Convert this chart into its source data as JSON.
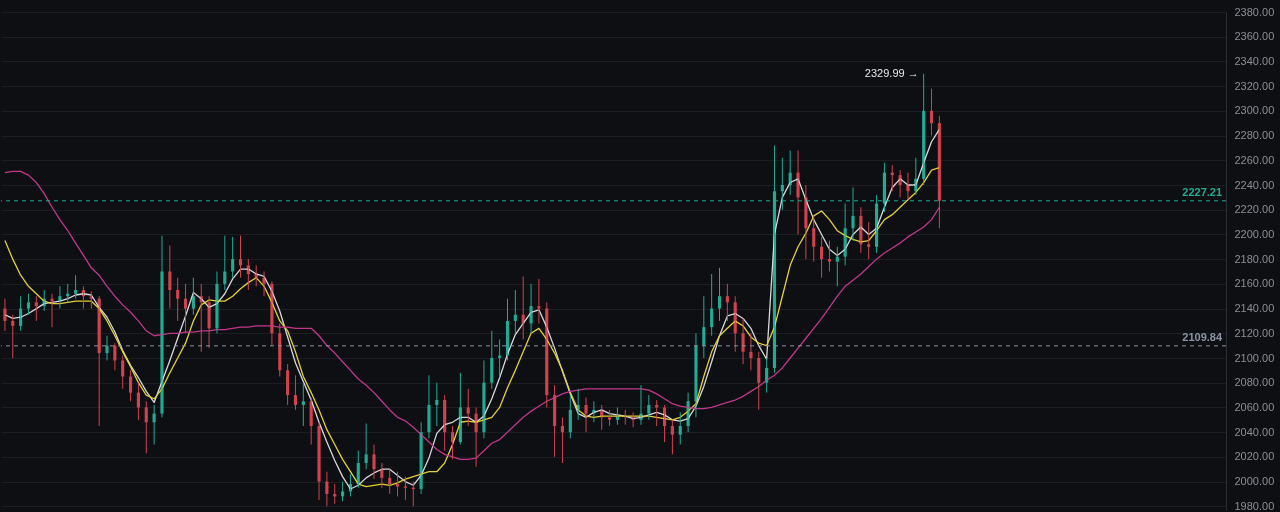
{
  "chart_data": {
    "type": "candlestick",
    "categories": [
      null,
      null,
      null,
      null,
      null,
      null,
      null,
      null,
      null,
      null,
      null,
      null,
      null,
      null,
      null,
      null,
      null,
      null,
      null,
      null,
      null,
      null,
      null,
      null,
      null,
      null,
      null,
      null,
      null,
      null,
      null,
      null,
      null,
      null,
      null,
      null,
      null,
      null,
      null,
      null,
      null,
      null,
      null,
      null,
      null,
      null,
      null,
      null,
      null,
      null,
      null,
      null,
      null,
      null,
      null,
      null,
      null,
      null,
      null,
      null,
      null,
      null,
      null,
      null,
      null,
      null,
      null,
      null,
      null,
      null,
      null,
      null,
      null,
      null,
      null,
      null,
      null,
      null,
      null,
      null,
      null,
      null,
      null,
      null,
      null,
      null,
      null,
      null,
      null,
      null,
      null,
      null,
      null,
      null,
      null,
      null,
      null,
      null,
      null,
      null,
      null,
      null,
      null,
      null,
      null,
      null,
      null,
      null,
      null,
      null,
      null,
      null,
      null,
      null,
      null,
      null,
      null,
      null,
      null,
      null,
      null,
      null,
      null,
      null,
      null,
      null,
      null,
      null,
      null,
      null,
      null,
      null,
      null,
      null,
      null,
      null,
      null,
      null,
      null,
      null,
      null,
      null,
      null,
      null,
      null,
      null,
      null,
      null,
      null,
      null,
      null,
      null,
      null,
      null,
      null,
      null
    ],
    "ohlc": [
      [
        2140,
        2148,
        2122,
        2130
      ],
      [
        2130,
        2135,
        2100,
        2126
      ],
      [
        2126,
        2150,
        2122,
        2140
      ],
      [
        2140,
        2152,
        2135,
        2145
      ],
      [
        2145,
        2150,
        2130,
        2142
      ],
      [
        2142,
        2155,
        2138,
        2148
      ],
      [
        2148,
        2152,
        2125,
        2146
      ],
      [
        2146,
        2158,
        2140,
        2150
      ],
      [
        2150,
        2160,
        2145,
        2152
      ],
      [
        2152,
        2167,
        2148,
        2155
      ],
      [
        2155,
        2158,
        2140,
        2150
      ],
      [
        2150,
        2154,
        2140,
        2148
      ],
      [
        2148,
        2150,
        2045,
        2104
      ],
      [
        2104,
        2118,
        2098,
        2110
      ],
      [
        2110,
        2112,
        2090,
        2098
      ],
      [
        2098,
        2102,
        2075,
        2085
      ],
      [
        2085,
        2090,
        2065,
        2072
      ],
      [
        2072,
        2080,
        2050,
        2060
      ],
      [
        2060,
        2065,
        2023,
        2048
      ],
      [
        2048,
        2062,
        2030,
        2055
      ],
      [
        2055,
        2199,
        2052,
        2170
      ],
      [
        2170,
        2191,
        2140,
        2155
      ],
      [
        2155,
        2165,
        2130,
        2148
      ],
      [
        2148,
        2160,
        2120,
        2140
      ],
      [
        2140,
        2165,
        2135,
        2150
      ],
      [
        2150,
        2160,
        2105,
        2145
      ],
      [
        2145,
        2150,
        2108,
        2124
      ],
      [
        2124,
        2170,
        2120,
        2160
      ],
      [
        2160,
        2199,
        2155,
        2170
      ],
      [
        2170,
        2198,
        2165,
        2180
      ],
      [
        2180,
        2199,
        2165,
        2175
      ],
      [
        2175,
        2180,
        2155,
        2168
      ],
      [
        2168,
        2175,
        2158,
        2165
      ],
      [
        2165,
        2170,
        2150,
        2160
      ],
      [
        2160,
        2162,
        2110,
        2120
      ],
      [
        2120,
        2128,
        2085,
        2090
      ],
      [
        2090,
        2095,
        2062,
        2070
      ],
      [
        2070,
        2086,
        2058,
        2062
      ],
      [
        2062,
        2080,
        2045,
        2065
      ],
      [
        2065,
        2068,
        2030,
        2045
      ],
      [
        2045,
        2048,
        1985,
        2000
      ],
      [
        2000,
        2008,
        1980,
        1990
      ],
      [
        1990,
        1998,
        1982,
        1988
      ],
      [
        1988,
        2000,
        1984,
        1992
      ],
      [
        1992,
        2006,
        1988,
        1998
      ],
      [
        1998,
        2025,
        1995,
        2015
      ],
      [
        2015,
        2047,
        2010,
        2022
      ],
      [
        2022,
        2030,
        2002,
        2010
      ],
      [
        2010,
        2015,
        1995,
        2003
      ],
      [
        2003,
        2010,
        1990,
        1998
      ],
      [
        1998,
        2008,
        1988,
        1996
      ],
      [
        1996,
        2004,
        1985,
        1995
      ],
      [
        1995,
        2000,
        1980,
        1994
      ],
      [
        1994,
        2048,
        1990,
        2040
      ],
      [
        2040,
        2086,
        2035,
        2062
      ],
      [
        2062,
        2080,
        2045,
        2066
      ],
      [
        2066,
        2070,
        2025,
        2040
      ],
      [
        2040,
        2045,
        2018,
        2032
      ],
      [
        2032,
        2088,
        2030,
        2060
      ],
      [
        2060,
        2075,
        2045,
        2055
      ],
      [
        2055,
        2060,
        2012,
        2040
      ],
      [
        2040,
        2098,
        2035,
        2080
      ],
      [
        2080,
        2122,
        2075,
        2100
      ],
      [
        2100,
        2115,
        2085,
        2102
      ],
      [
        2102,
        2148,
        2098,
        2130
      ],
      [
        2130,
        2155,
        2120,
        2135
      ],
      [
        2135,
        2166,
        2115,
        2128
      ],
      [
        2128,
        2160,
        2120,
        2142
      ],
      [
        2142,
        2164,
        2128,
        2140
      ],
      [
        2140,
        2145,
        2060,
        2070
      ],
      [
        2070,
        2078,
        2020,
        2045
      ],
      [
        2045,
        2052,
        2015,
        2040
      ],
      [
        2040,
        2070,
        2035,
        2058
      ],
      [
        2058,
        2075,
        2050,
        2062
      ],
      [
        2062,
        2068,
        2040,
        2055
      ],
      [
        2055,
        2065,
        2048,
        2058
      ],
      [
        2058,
        2062,
        2042,
        2052
      ],
      [
        2052,
        2058,
        2045,
        2050
      ],
      [
        2050,
        2060,
        2046,
        2053
      ],
      [
        2053,
        2058,
        2046,
        2052
      ],
      [
        2052,
        2056,
        2044,
        2050
      ],
      [
        2050,
        2078,
        2046,
        2055
      ],
      [
        2055,
        2070,
        2050,
        2062
      ],
      [
        2062,
        2066,
        2045,
        2060
      ],
      [
        2060,
        2062,
        2032,
        2045
      ],
      [
        2045,
        2050,
        2022,
        2038
      ],
      [
        2038,
        2056,
        2030,
        2045
      ],
      [
        2045,
        2072,
        2040,
        2065
      ],
      [
        2065,
        2120,
        2052,
        2110
      ],
      [
        2110,
        2150,
        2100,
        2125
      ],
      [
        2125,
        2168,
        2118,
        2140
      ],
      [
        2140,
        2173,
        2130,
        2150
      ],
      [
        2150,
        2160,
        2130,
        2145
      ],
      [
        2145,
        2150,
        2105,
        2120
      ],
      [
        2120,
        2132,
        2095,
        2105
      ],
      [
        2105,
        2120,
        2090,
        2100
      ],
      [
        2100,
        2105,
        2058,
        2080
      ],
      [
        2080,
        2100,
        2072,
        2092
      ],
      [
        2092,
        2272,
        2088,
        2235
      ],
      [
        2235,
        2262,
        2220,
        2240
      ],
      [
        2240,
        2268,
        2232,
        2250
      ],
      [
        2250,
        2268,
        2200,
        2230
      ],
      [
        2230,
        2240,
        2180,
        2205
      ],
      [
        2205,
        2215,
        2178,
        2190
      ],
      [
        2190,
        2198,
        2165,
        2180
      ],
      [
        2180,
        2195,
        2170,
        2178
      ],
      [
        2178,
        2190,
        2158,
        2182
      ],
      [
        2182,
        2225,
        2175,
        2205
      ],
      [
        2205,
        2238,
        2195,
        2215
      ],
      [
        2215,
        2222,
        2185,
        2192
      ],
      [
        2192,
        2210,
        2180,
        2190
      ],
      [
        2190,
        2232,
        2185,
        2225
      ],
      [
        2225,
        2258,
        2218,
        2250
      ],
      [
        2250,
        2256,
        2235,
        2248
      ],
      [
        2248,
        2252,
        2230,
        2240
      ],
      [
        2240,
        2250,
        2228,
        2235
      ],
      [
        2235,
        2262,
        2232,
        2245
      ],
      [
        2245,
        2329.99,
        2240,
        2300
      ],
      [
        2300,
        2318,
        2280,
        2290
      ],
      [
        2290,
        2296,
        2205,
        2227.21
      ],
      null,
      null,
      null,
      null,
      null,
      null,
      null,
      null,
      null,
      null,
      null,
      null,
      null,
      null,
      null,
      null,
      null,
      null,
      null,
      null,
      null,
      null,
      null,
      null,
      null,
      null,
      null,
      null,
      null,
      null,
      null,
      null,
      null,
      null,
      null,
      null
    ],
    "series": [
      {
        "type": "line",
        "color": "#d8d8dc",
        "values": [
          2135,
          2132,
          2133,
          2136,
          2140,
          2144,
          2145,
          2146,
          2148,
          2151,
          2152,
          2151,
          2141,
          2133,
          2121,
          2106,
          2094,
          2084,
          2073,
          2064,
          2081,
          2098,
          2116,
          2134,
          2153,
          2148,
          2141,
          2144,
          2152,
          2164,
          2172,
          2172,
          2168,
          2166,
          2154,
          2138,
          2117,
          2096,
          2081,
          2066,
          2048,
          2032,
          2017,
          2004,
          1994,
          1997,
          2003,
          2007,
          2010,
          2010,
          2005,
          2000,
          1997,
          2005,
          2019,
          2039,
          2046,
          2048,
          2052,
          2052,
          2048,
          2053,
          2067,
          2084,
          2103,
          2119,
          2128,
          2137,
          2139,
          2125,
          2108,
          2089,
          2071,
          2055,
          2052,
          2056,
          2058,
          2055,
          2054,
          2053,
          2051,
          2052,
          2054,
          2056,
          2054,
          2050,
          2049,
          2051,
          2061,
          2077,
          2097,
          2118,
          2134,
          2136,
          2132,
          2124,
          2110,
          2099,
          2200,
          2230,
          2242,
          2245,
          2228,
          2212,
          2200,
          2188,
          2183,
          2188,
          2200,
          2206,
          2200,
          2205,
          2222,
          2238,
          2245,
          2240,
          2240,
          2258,
          2275,
          2285,
          null,
          null,
          null,
          null,
          null,
          null,
          null,
          null,
          null,
          null,
          null,
          null,
          null,
          null,
          null,
          null,
          null,
          null,
          null,
          null,
          null,
          null,
          null,
          null,
          null,
          null,
          null,
          null,
          null,
          null,
          null,
          null,
          null,
          null,
          null,
          null
        ]
      },
      {
        "type": "line",
        "color": "#e3cf3a",
        "values": [
          2195,
          2180,
          2167,
          2158,
          2152,
          2146,
          2144,
          2144,
          2145,
          2146,
          2146,
          2146,
          2140,
          2130,
          2118,
          2105,
          2093,
          2080,
          2070,
          2067,
          2075,
          2088,
          2100,
          2112,
          2130,
          2143,
          2147,
          2146,
          2146,
          2150,
          2156,
          2161,
          2165,
          2158,
          2145,
          2130,
          2122,
          2105,
          2085,
          2072,
          2058,
          2042,
          2030,
          2018,
          2008,
          1998,
          1996,
          1997,
          1998,
          1997,
          1999,
          2002,
          2004,
          2006,
          2008,
          2008,
          2015,
          2030,
          2048,
          2049,
          2048,
          2050,
          2052,
          2060,
          2076,
          2090,
          2105,
          2120,
          2124,
          2115,
          2104,
          2090,
          2072,
          2058,
          2053,
          2052,
          2053,
          2053,
          2053,
          2053,
          2053,
          2053,
          2053,
          2052,
          2051,
          2050,
          2052,
          2057,
          2063,
          2085,
          2105,
          2118,
          2124,
          2130,
          2126,
          2117,
          2112,
          2110,
          2125,
          2150,
          2175,
          2190,
          2201,
          2215,
          2219,
          2212,
          2203,
          2199,
          2196,
          2194,
          2195,
          2203,
          2212,
          2216,
          2222,
          2228,
          2234,
          2242,
          2252,
          2254,
          null,
          null,
          null,
          null,
          null,
          null,
          null,
          null,
          null,
          null,
          null,
          null,
          null,
          null,
          null,
          null,
          null,
          null,
          null,
          null,
          null,
          null,
          null,
          null,
          null,
          null,
          null,
          null,
          null,
          null,
          null,
          null,
          null,
          null,
          null,
          null
        ]
      },
      {
        "type": "line",
        "color": "#c2378c",
        "values": [
          2250,
          2251,
          2251,
          2248,
          2242,
          2233,
          2222,
          2212,
          2203,
          2193,
          2183,
          2173,
          2167,
          2158,
          2150,
          2143,
          2137,
          2130,
          2122,
          2118,
          2119,
          2120,
          2120,
          2121,
          2121,
          2122,
          2122,
          2123,
          2123,
          2124,
          2125,
          2125,
          2126,
          2126,
          2126,
          2125,
          2125,
          2124,
          2124,
          2124,
          2118,
          2110,
          2104,
          2097,
          2090,
          2083,
          2078,
          2072,
          2065,
          2058,
          2052,
          2049,
          2044,
          2038,
          2032,
          2026,
          2022,
          2020,
          2018,
          2018,
          2019,
          2025,
          2031,
          2034,
          2040,
          2046,
          2052,
          2057,
          2061,
          2065,
          2068,
          2071,
          2073,
          2074,
          2075,
          2075,
          2075,
          2075,
          2075,
          2075,
          2075,
          2075,
          2074,
          2071,
          2067,
          2063,
          2061,
          2060,
          2059,
          2059,
          2060,
          2062,
          2064,
          2066,
          2069,
          2073,
          2077,
          2082,
          2086,
          2092,
          2100,
          2108,
          2116,
          2124,
          2132,
          2141,
          2150,
          2158,
          2163,
          2168,
          2174,
          2180,
          2185,
          2189,
          2193,
          2198,
          2202,
          2206,
          2212,
          2222,
          null,
          null,
          null,
          null,
          null,
          null,
          null,
          null,
          null,
          null,
          null,
          null,
          null,
          null,
          null,
          null,
          null,
          null,
          null,
          null,
          null,
          null,
          null,
          null,
          null,
          null,
          null,
          null,
          null,
          null,
          null,
          null,
          null,
          null,
          null,
          null
        ]
      }
    ],
    "ylim": [
      1977,
      2380
    ],
    "yticks": [
      {
        "value": 1980,
        "label": "1980.00"
      },
      {
        "value": 2000,
        "label": "2000.00"
      },
      {
        "value": 2020,
        "label": "2020.00"
      },
      {
        "value": 2040,
        "label": "2040.00"
      },
      {
        "value": 2060,
        "label": "2060.00"
      },
      {
        "value": 2080,
        "label": "2080.00"
      },
      {
        "value": 2100,
        "label": "2100.00"
      },
      {
        "value": 2120,
        "label": "2120.00"
      },
      {
        "value": 2140,
        "label": "2140.00"
      },
      {
        "value": 2160,
        "label": "2160.00"
      },
      {
        "value": 2180,
        "label": "2180.00"
      },
      {
        "value": 2200,
        "label": "2200.00"
      },
      {
        "value": 2220,
        "label": "2220.00"
      },
      {
        "value": 2240,
        "label": "2240.00"
      },
      {
        "value": 2260,
        "label": "2260.00"
      },
      {
        "value": 2280,
        "label": "2280.00"
      },
      {
        "value": 2300,
        "label": "2300.00"
      },
      {
        "value": 2320,
        "label": "2320.00"
      },
      {
        "value": 2340,
        "label": "2340.00"
      },
      {
        "value": 2360,
        "label": "2360.00"
      },
      {
        "value": 2380,
        "label": "2380.00"
      }
    ],
    "tick_labels": "y",
    "grid": "y",
    "ref_lines": [
      {
        "axis": "y",
        "value": 2227.21,
        "label": "2227.21",
        "color": "#22ab94",
        "line_style": "dashed"
      },
      {
        "axis": "y",
        "value": 2109.84,
        "label": "2109.84",
        "color": "#8b93a3",
        "line_style": "dashed"
      }
    ],
    "annotations": [
      "2329.99 →"
    ]
  }
}
